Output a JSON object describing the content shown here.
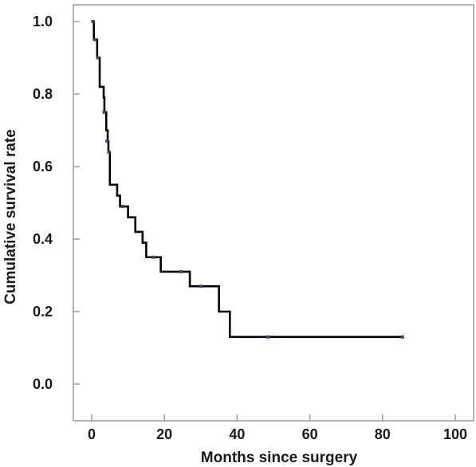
{
  "chart_data": {
    "type": "line",
    "title": "",
    "xlabel": "Months since surgery",
    "ylabel": "Cumulative survival rate",
    "xlim": [
      0,
      100
    ],
    "ylim": [
      0,
      1.0
    ],
    "x_ticks": [
      0,
      20,
      40,
      60,
      80,
      100
    ],
    "y_ticks": [
      0.0,
      0.2,
      0.4,
      0.6,
      0.8,
      1.0
    ],
    "x_tick_labels": [
      "0",
      "20",
      "40",
      "60",
      "80",
      "100"
    ],
    "y_tick_labels": [
      "0.0",
      "0.2",
      "0.4",
      "0.6",
      "0.8",
      "1.0"
    ],
    "grid": false,
    "legend": "none",
    "line_color": "#000000",
    "censor_color": "#3b4a8c",
    "series": [
      {
        "step": "post",
        "steps": [
          {
            "x": 0.0,
            "y": 1.0
          },
          {
            "x": 0.6,
            "y": 0.95
          },
          {
            "x": 1.5,
            "y": 0.9
          },
          {
            "x": 2.2,
            "y": 0.82
          },
          {
            "x": 3.3,
            "y": 0.79
          },
          {
            "x": 3.5,
            "y": 0.75
          },
          {
            "x": 4.0,
            "y": 0.7
          },
          {
            "x": 4.4,
            "y": 0.67
          },
          {
            "x": 4.6,
            "y": 0.64
          },
          {
            "x": 5.0,
            "y": 0.55
          },
          {
            "x": 7.0,
            "y": 0.52
          },
          {
            "x": 7.8,
            "y": 0.49
          },
          {
            "x": 10.0,
            "y": 0.46
          },
          {
            "x": 12.0,
            "y": 0.42
          },
          {
            "x": 14.0,
            "y": 0.39
          },
          {
            "x": 15.0,
            "y": 0.35
          },
          {
            "x": 19.0,
            "y": 0.31
          },
          {
            "x": 27.0,
            "y": 0.27
          },
          {
            "x": 35.0,
            "y": 0.2
          },
          {
            "x": 38.0,
            "y": 0.13
          },
          {
            "x": 85.5,
            "y": 0.13
          }
        ],
        "censored": [
          {
            "x": 0.3,
            "y": 1.0
          },
          {
            "x": 0.9,
            "y": 0.95
          },
          {
            "x": 1.7,
            "y": 0.9
          },
          {
            "x": 3.4,
            "y": 0.75
          },
          {
            "x": 4.2,
            "y": 0.67
          },
          {
            "x": 4.7,
            "y": 0.64
          },
          {
            "x": 8.5,
            "y": 0.49
          },
          {
            "x": 17.0,
            "y": 0.35
          },
          {
            "x": 24.5,
            "y": 0.31
          },
          {
            "x": 30.0,
            "y": 0.27
          },
          {
            "x": 48.5,
            "y": 0.13
          },
          {
            "x": 85.5,
            "y": 0.13
          }
        ]
      }
    ]
  }
}
